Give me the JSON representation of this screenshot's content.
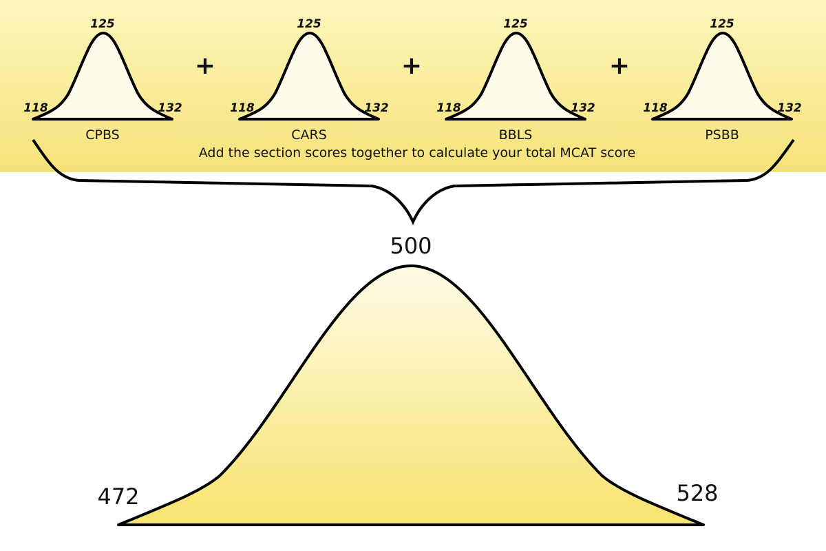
{
  "sections": [
    {
      "name": "CPBS",
      "min": "118",
      "mean": "125",
      "max": "132"
    },
    {
      "name": "CARS",
      "min": "118",
      "mean": "125",
      "max": "132"
    },
    {
      "name": "BBLS",
      "min": "118",
      "mean": "125",
      "max": "132"
    },
    {
      "name": "PSBB",
      "min": "118",
      "mean": "125",
      "max": "132"
    }
  ],
  "operator": "+",
  "caption": "Add the section scores together to calculate your total MCAT score",
  "total": {
    "min": "472",
    "mean": "500",
    "max": "528"
  },
  "colors": {
    "band_top": "#fdf6bd",
    "band_bottom": "#f6e27a",
    "small_fill": "#fefbea",
    "big_fill_top": "#fefbe6",
    "big_fill_bottom": "#f7e36f",
    "stroke": "#000000"
  }
}
